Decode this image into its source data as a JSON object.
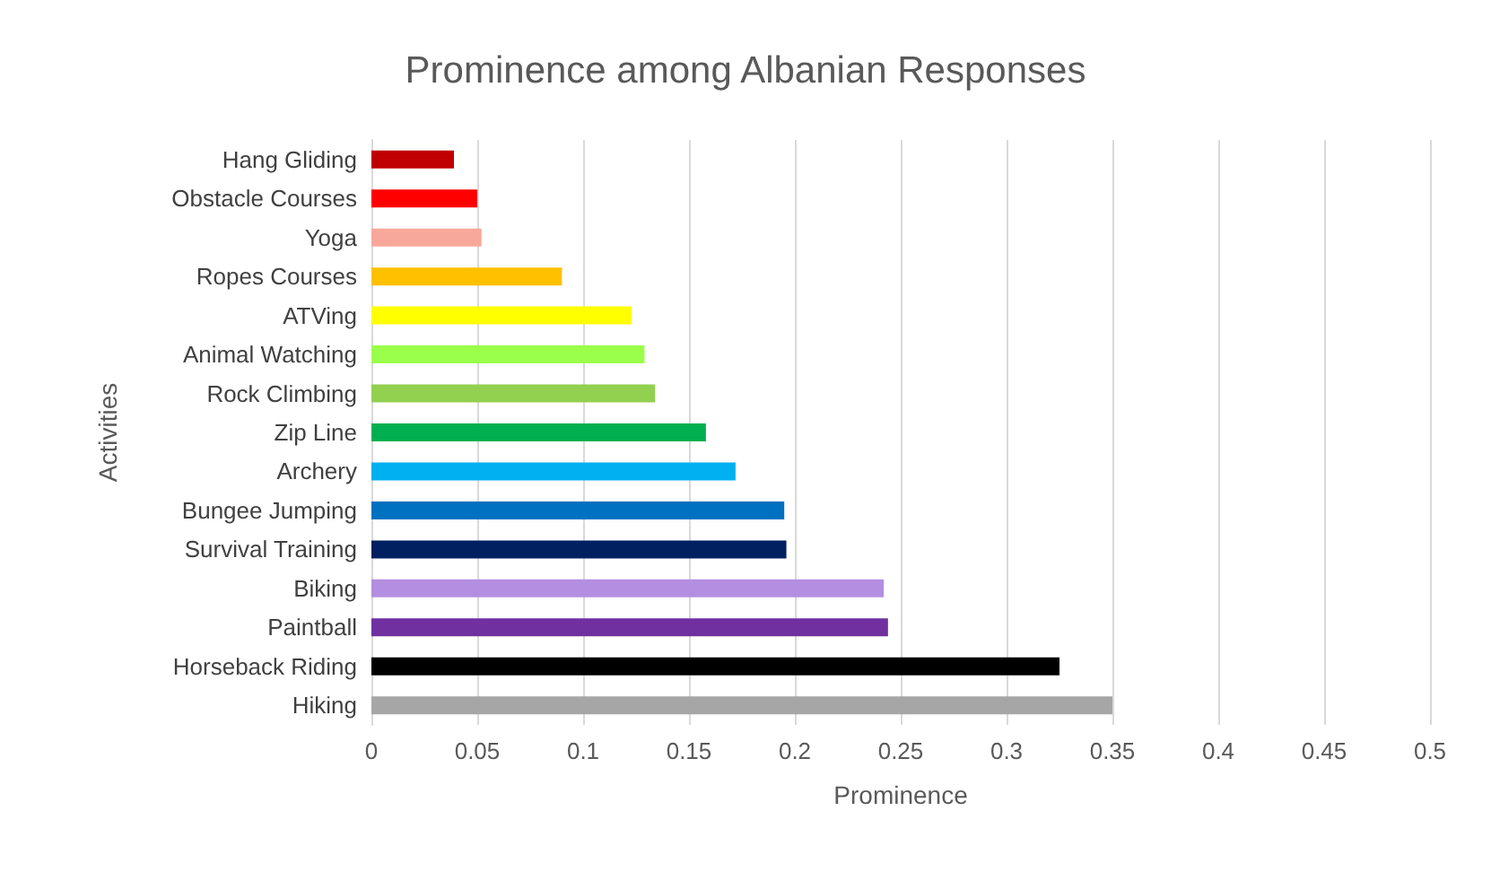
{
  "chart_data": {
    "type": "bar",
    "orientation": "horizontal",
    "title": "Prominence among Albanian Responses",
    "xlabel": "Prominence",
    "ylabel": "Activities",
    "categories": [
      "Hang Gliding",
      "Obstacle Courses",
      "Yoga",
      "Ropes Courses",
      "ATVing",
      "Animal Watching",
      "Rock Climbing",
      "Zip Line",
      "Archery",
      "Bungee Jumping",
      "Survival Training",
      "Biking",
      "Paintball",
      "Horseback Riding",
      "Hiking"
    ],
    "values": [
      0.039,
      0.05,
      0.052,
      0.09,
      0.123,
      0.129,
      0.134,
      0.158,
      0.172,
      0.195,
      0.196,
      0.242,
      0.244,
      0.325,
      0.35
    ],
    "colors": [
      "#c00000",
      "#ff0000",
      "#f8a89a",
      "#ffc000",
      "#ffff00",
      "#9aff4a",
      "#92d050",
      "#00b050",
      "#00b0f0",
      "#0070c0",
      "#002060",
      "#b48ee0",
      "#7030a0",
      "#000000",
      "#a6a6a6"
    ],
    "xlim": [
      0,
      0.5
    ],
    "xticks": [
      0,
      0.05,
      0.1,
      0.15,
      0.2,
      0.25,
      0.3,
      0.35,
      0.4,
      0.45,
      0.5
    ],
    "grid": "x"
  }
}
